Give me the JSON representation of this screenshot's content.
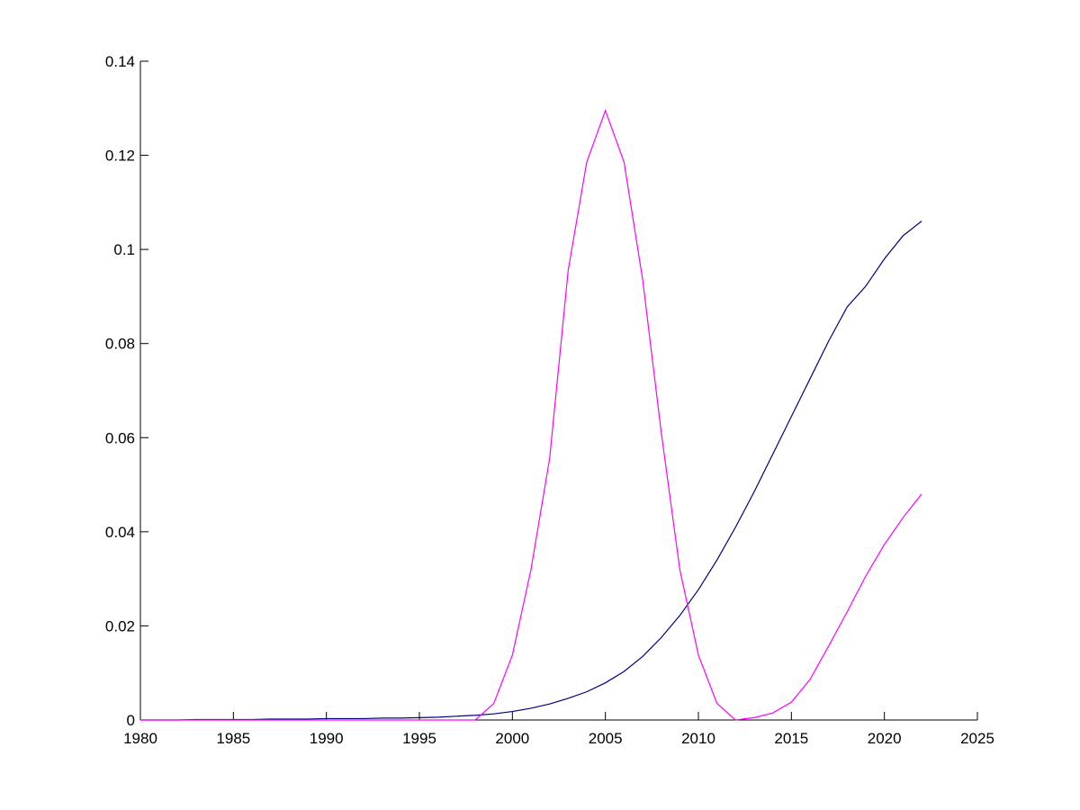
{
  "chart_data": {
    "type": "line",
    "x": [
      1980,
      1981,
      1982,
      1983,
      1984,
      1985,
      1986,
      1987,
      1988,
      1989,
      1990,
      1991,
      1992,
      1993,
      1994,
      1995,
      1996,
      1997,
      1998,
      1999,
      2000,
      2001,
      2002,
      2003,
      2004,
      2005,
      2006,
      2007,
      2008,
      2009,
      2010,
      2011,
      2012,
      2013,
      2014,
      2015,
      2016,
      2017,
      2018,
      2019,
      2020,
      2021,
      2022
    ],
    "series": [
      {
        "color": "#000080",
        "values": [
          0,
          0,
          0,
          0.0001,
          0.0001,
          0.0001,
          0.0001,
          0.0002,
          0.0002,
          0.0002,
          0.0003,
          0.0003,
          0.0003,
          0.0004,
          0.0004,
          0.0005,
          0.0006,
          0.0008,
          0.001,
          0.0013,
          0.0018,
          0.0025,
          0.0034,
          0.0046,
          0.006,
          0.0079,
          0.0103,
          0.0135,
          0.0175,
          0.0222,
          0.0277,
          0.034,
          0.041,
          0.0485,
          0.0565,
          0.0645,
          0.0725,
          0.0805,
          0.0878,
          0.0922,
          0.098,
          0.1029,
          0.106
        ]
      },
      {
        "color": "#ff00ff",
        "values": [
          0,
          0,
          0,
          0,
          0,
          0,
          0,
          0,
          0,
          0,
          0,
          0,
          0,
          0,
          0,
          0,
          0,
          0,
          0,
          0.0035,
          0.0138,
          0.032,
          0.0555,
          0.0956,
          0.1186,
          0.1295,
          0.1186,
          0.0937,
          0.0612,
          0.032,
          0.0138,
          0.0035,
          0,
          0.0005,
          0.0015,
          0.0038,
          0.0086,
          0.0157,
          0.023,
          0.0306,
          0.0373,
          0.043,
          0.048
        ]
      }
    ],
    "xlim": [
      1980,
      2025
    ],
    "xticks": [
      1980,
      1985,
      1990,
      1995,
      2000,
      2005,
      2010,
      2015,
      2020,
      2025
    ],
    "ylim": [
      0,
      0.14
    ],
    "yticks": [
      0,
      0.02,
      0.04,
      0.06,
      0.08,
      0.1,
      0.12,
      0.14
    ]
  }
}
